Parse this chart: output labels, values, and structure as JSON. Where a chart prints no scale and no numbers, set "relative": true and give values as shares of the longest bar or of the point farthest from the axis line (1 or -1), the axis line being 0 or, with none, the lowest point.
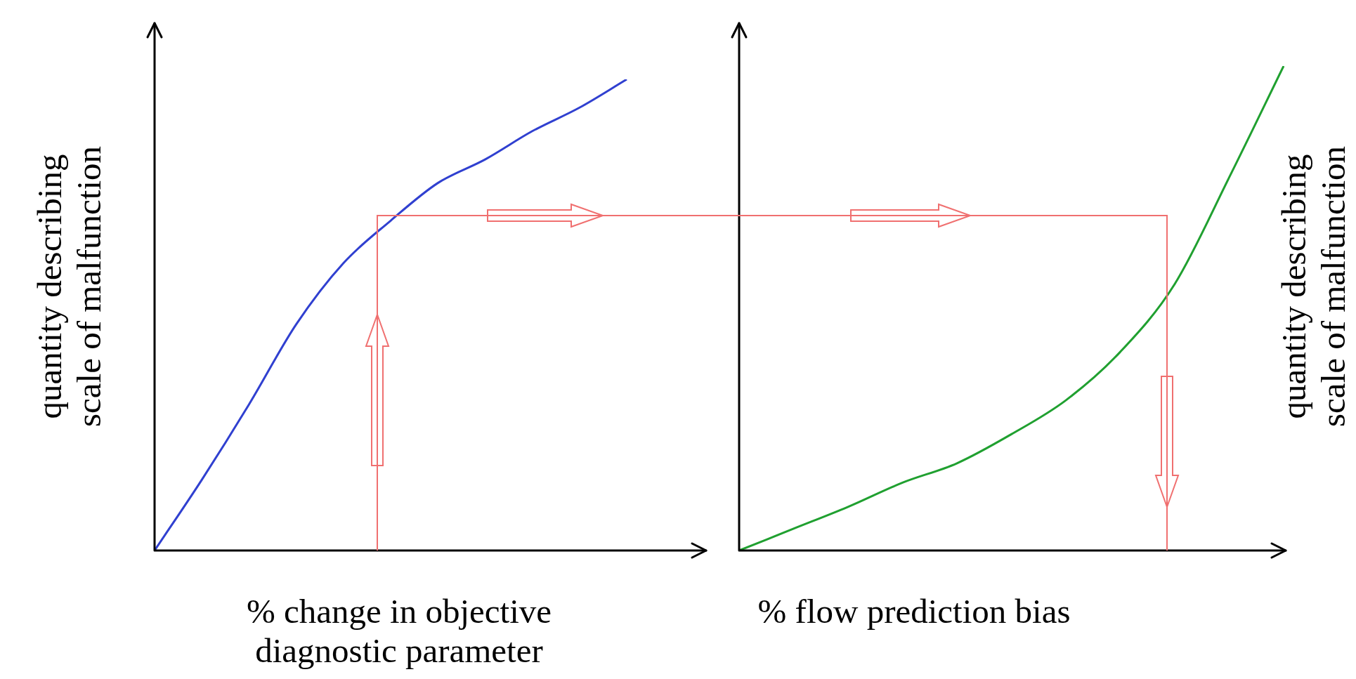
{
  "chart_data": [
    {
      "type": "line",
      "relative": true,
      "xlabel": "% change in objective diagnostic parameter",
      "ylabel": "quantity describing scale of malfunction",
      "categories": [
        null,
        null,
        null,
        null,
        null,
        null,
        null,
        null,
        null,
        null,
        null
      ],
      "series": [
        {
          "color": "#3040d0",
          "values": [
            0,
            0.15,
            0.31,
            0.48,
            0.61,
            0.7,
            0.78,
            0.83,
            0.89,
            0.94,
            1
          ]
        }
      ],
      "marker": "none"
    },
    {
      "type": "line",
      "relative": true,
      "xlabel": "% flow prediction bias",
      "y2label": "quantity describing scale of malfunction",
      "categories": [
        null,
        null,
        null,
        null,
        null,
        null,
        null,
        null,
        null,
        null,
        null
      ],
      "series": [
        {
          "color": "#20a030",
          "values": [
            0,
            0.045,
            0.09,
            0.14,
            0.18,
            0.24,
            0.31,
            0.41,
            0.55,
            0.77,
            1
          ]
        }
      ],
      "marker": "none"
    }
  ]
}
